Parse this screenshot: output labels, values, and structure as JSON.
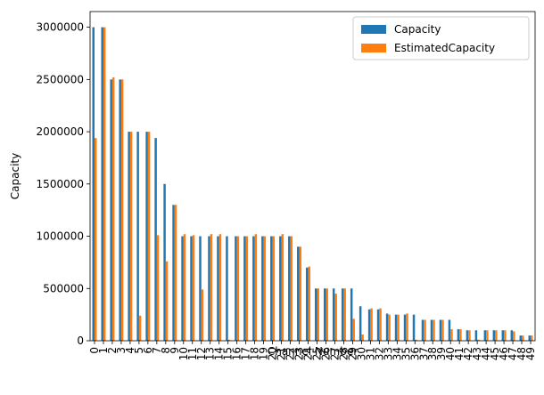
{
  "chart_data": {
    "type": "bar",
    "title": "",
    "xlabel": "Channel Number",
    "ylabel": "Capacity",
    "ylim": [
      0,
      3150000
    ],
    "yticks": [
      0,
      500000,
      1000000,
      1500000,
      2000000,
      2500000,
      3000000
    ],
    "grid": false,
    "legend_position": "top-right",
    "categories": [
      "0",
      "1",
      "2",
      "3",
      "4",
      "5",
      "6",
      "7",
      "8",
      "9",
      "10",
      "11",
      "12",
      "13",
      "14",
      "15",
      "16",
      "17",
      "18",
      "19",
      "20",
      "21",
      "22",
      "23",
      "24",
      "25",
      "26",
      "27",
      "28",
      "29",
      "30",
      "31",
      "32",
      "33",
      "34",
      "35",
      "36",
      "37",
      "38",
      "39",
      "40",
      "41",
      "42",
      "43",
      "44",
      "45",
      "46",
      "47",
      "48",
      "49"
    ],
    "series": [
      {
        "name": "Capacity",
        "color": "#1f77b4",
        "values": [
          3000000,
          3000000,
          2500000,
          2500000,
          2000000,
          2000000,
          2000000,
          1940000,
          1500000,
          1300000,
          1000000,
          1000000,
          1000000,
          1000000,
          1000000,
          1000000,
          1000000,
          1000000,
          1000000,
          1000000,
          1000000,
          1000000,
          1000000,
          900000,
          700000,
          500000,
          500000,
          500000,
          500000,
          500000,
          330000,
          300000,
          300000,
          260000,
          250000,
          250000,
          250000,
          200000,
          200000,
          200000,
          200000,
          110000,
          100000,
          100000,
          100000,
          100000,
          100000,
          100000,
          50000,
          50000
        ]
      },
      {
        "name": "EstimatedCapacity",
        "color": "#ff7f0e",
        "values": [
          1940000,
          3000000,
          2520000,
          2500000,
          2000000,
          240000,
          2000000,
          1010000,
          760000,
          1300000,
          1020000,
          1010000,
          490000,
          1020000,
          1020000,
          10000,
          1000000,
          1000000,
          1020000,
          1000000,
          1000000,
          1020000,
          1000000,
          900000,
          710000,
          500000,
          500000,
          450000,
          500000,
          210000,
          60000,
          310000,
          310000,
          250000,
          250000,
          260000,
          10000,
          200000,
          200000,
          200000,
          110000,
          110000,
          100000,
          10000,
          100000,
          100000,
          100000,
          90000,
          50000,
          50000
        ]
      }
    ]
  }
}
